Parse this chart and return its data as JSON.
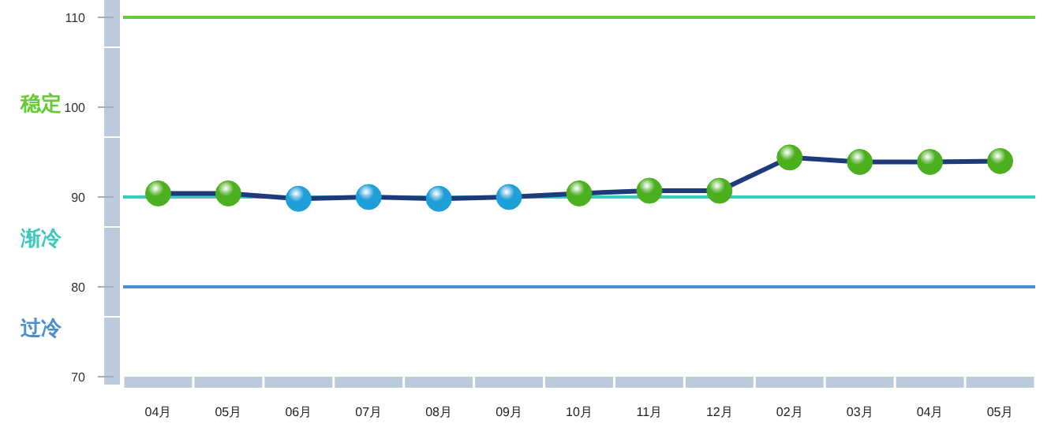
{
  "chart_data": {
    "type": "line",
    "categories": [
      "04月",
      "05月",
      "06月",
      "07月",
      "08月",
      "09月",
      "10月",
      "11月",
      "12月",
      "02月",
      "03月",
      "04月",
      "05月"
    ],
    "series": [
      {
        "color": "#1f3a7a",
        "values": [
          90.4,
          90.4,
          89.8,
          90.0,
          89.8,
          90.0,
          90.4,
          90.7,
          90.7,
          94.4,
          93.9,
          93.9,
          94.0
        ],
        "colors": [
          "#4caf1e",
          "#4caf1e",
          "#1e9fd8",
          "#1e9fd8",
          "#1e9fd8",
          "#1e9fd8",
          "#4caf1e",
          "#4caf1e",
          "#4caf1e",
          "#4caf1e",
          "#4caf1e",
          "#4caf1e",
          "#4caf1e"
        ]
      }
    ],
    "ylim": [
      70,
      110
    ],
    "yticks": [
      70,
      80,
      90,
      100,
      110
    ],
    "ref_lines": [
      {
        "axis": "y",
        "value": 110,
        "label": "稳定",
        "color": "#66cc33"
      },
      {
        "axis": "y",
        "value": 90,
        "label": "渐冷",
        "color": "#40c8c0"
      },
      {
        "axis": "y",
        "value": 80,
        "label": "过冷",
        "color": "#4a8fd0"
      }
    ],
    "marker": "circle",
    "line_style": "solid",
    "grid": false
  }
}
